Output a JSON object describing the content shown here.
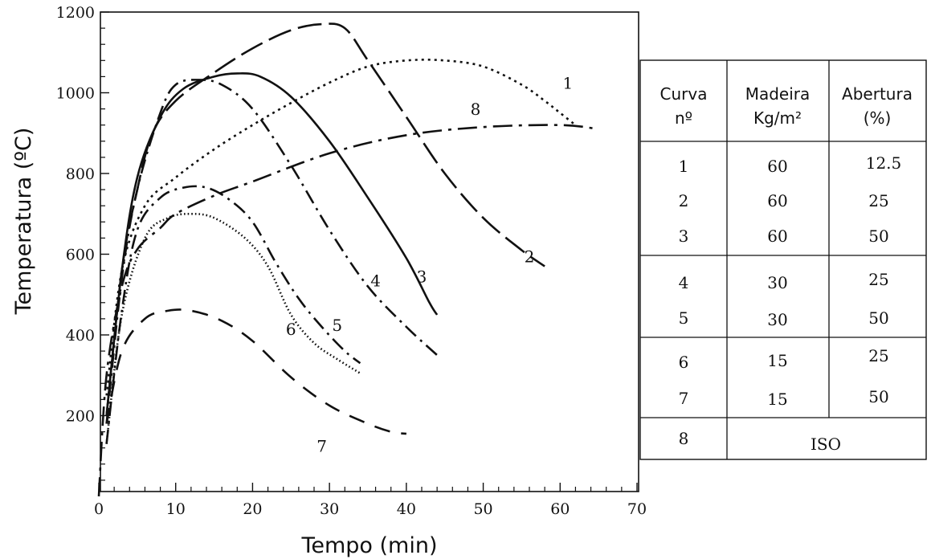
{
  "chart_data": {
    "type": "line",
    "xlabel": "Tempo (min)",
    "ylabel": "Temperatura (ºC)",
    "xlim": [
      0,
      70
    ],
    "ylim": [
      0,
      1200
    ],
    "x_ticks": [
      0,
      10,
      20,
      30,
      40,
      50,
      60,
      70
    ],
    "y_ticks": [
      200,
      400,
      600,
      800,
      1000,
      1200
    ],
    "grid": false,
    "series": [
      {
        "name": "1",
        "style": "dotted",
        "points": [
          [
            1,
            250
          ],
          [
            3,
            560
          ],
          [
            6,
            720
          ],
          [
            10,
            790
          ],
          [
            15,
            860
          ],
          [
            20,
            920
          ],
          [
            25,
            975
          ],
          [
            30,
            1025
          ],
          [
            35,
            1065
          ],
          [
            40,
            1080
          ],
          [
            45,
            1080
          ],
          [
            50,
            1065
          ],
          [
            55,
            1020
          ],
          [
            58,
            980
          ],
          [
            60,
            950
          ],
          [
            62,
            920
          ]
        ]
      },
      {
        "name": "2",
        "style": "long-dash",
        "points": [
          [
            1,
            200
          ],
          [
            3,
            560
          ],
          [
            5,
            760
          ],
          [
            7,
            900
          ],
          [
            10,
            980
          ],
          [
            15,
            1050
          ],
          [
            20,
            1110
          ],
          [
            25,
            1155
          ],
          [
            29,
            1170
          ],
          [
            32,
            1160
          ],
          [
            35,
            1080
          ],
          [
            40,
            940
          ],
          [
            45,
            800
          ],
          [
            50,
            690
          ],
          [
            55,
            610
          ],
          [
            58,
            570
          ]
        ]
      },
      {
        "name": "3",
        "style": "solid",
        "points": [
          [
            1,
            200
          ],
          [
            3,
            560
          ],
          [
            5,
            790
          ],
          [
            8,
            940
          ],
          [
            11,
            1010
          ],
          [
            15,
            1040
          ],
          [
            18,
            1048
          ],
          [
            21,
            1040
          ],
          [
            25,
            990
          ],
          [
            30,
            880
          ],
          [
            35,
            740
          ],
          [
            40,
            590
          ],
          [
            43,
            480
          ],
          [
            44,
            450
          ]
        ]
      },
      {
        "name": "4",
        "style": "dash-dot",
        "points": [
          [
            1,
            180
          ],
          [
            3,
            540
          ],
          [
            5,
            760
          ],
          [
            8,
            950
          ],
          [
            10,
            1020
          ],
          [
            13,
            1032
          ],
          [
            16,
            1020
          ],
          [
            20,
            960
          ],
          [
            25,
            820
          ],
          [
            30,
            660
          ],
          [
            35,
            520
          ],
          [
            40,
            420
          ],
          [
            44,
            350
          ]
        ]
      },
      {
        "name": "5",
        "style": "dash-dot",
        "points": [
          [
            1,
            130
          ],
          [
            3,
            460
          ],
          [
            5,
            660
          ],
          [
            8,
            740
          ],
          [
            11,
            765
          ],
          [
            14,
            765
          ],
          [
            17,
            735
          ],
          [
            20,
            680
          ],
          [
            23,
            580
          ],
          [
            26,
            490
          ],
          [
            29,
            420
          ],
          [
            32,
            360
          ],
          [
            34,
            330
          ]
        ]
      },
      {
        "name": "6",
        "style": "fine-dotted",
        "points": [
          [
            1,
            130
          ],
          [
            3,
            450
          ],
          [
            6,
            640
          ],
          [
            9,
            690
          ],
          [
            12,
            700
          ],
          [
            15,
            690
          ],
          [
            19,
            640
          ],
          [
            22,
            570
          ],
          [
            25,
            450
          ],
          [
            28,
            380
          ],
          [
            31,
            340
          ],
          [
            34,
            305
          ]
        ]
      },
      {
        "name": "7",
        "style": "dashed",
        "points": [
          [
            1,
            180
          ],
          [
            3,
            360
          ],
          [
            6,
            440
          ],
          [
            9,
            460
          ],
          [
            12,
            460
          ],
          [
            16,
            435
          ],
          [
            20,
            385
          ],
          [
            25,
            295
          ],
          [
            30,
            225
          ],
          [
            35,
            180
          ],
          [
            38,
            160
          ],
          [
            40,
            155
          ]
        ]
      },
      {
        "name": "8",
        "style": "dash-dot-long",
        "points": [
          [
            0,
            0
          ],
          [
            1,
            300
          ],
          [
            3,
            520
          ],
          [
            5,
            612
          ],
          [
            8,
            665
          ],
          [
            10,
            700
          ],
          [
            15,
            745
          ],
          [
            20,
            780
          ],
          [
            30,
            850
          ],
          [
            40,
            895
          ],
          [
            50,
            915
          ],
          [
            60,
            920
          ],
          [
            65,
            910
          ]
        ]
      }
    ],
    "curve_labels": [
      {
        "text": "1",
        "x": 61,
        "y": 1010
      },
      {
        "text": "8",
        "x": 49,
        "y": 945
      },
      {
        "text": "2",
        "x": 56,
        "y": 580
      },
      {
        "text": "3",
        "x": 42,
        "y": 530
      },
      {
        "text": "4",
        "x": 36,
        "y": 520
      },
      {
        "text": "5",
        "x": 31,
        "y": 410
      },
      {
        "text": "6",
        "x": 25,
        "y": 400
      },
      {
        "text": "7",
        "x": 29,
        "y": 110
      }
    ]
  },
  "legend_table": {
    "headers": {
      "col1": [
        "Curva",
        "nº"
      ],
      "col2": [
        "Madeira",
        "Kg/m²"
      ],
      "col3": [
        "Abertura",
        "(%)"
      ]
    },
    "groups": [
      [
        [
          "1",
          "60",
          "12.5"
        ],
        [
          "2",
          "60",
          "25"
        ],
        [
          "3",
          "60",
          "50"
        ]
      ],
      [
        [
          "4",
          "30",
          "25"
        ],
        [
          "5",
          "30",
          "50"
        ]
      ],
      [
        [
          "6",
          "15",
          "25"
        ],
        [
          "7",
          "15",
          "50"
        ]
      ]
    ],
    "last_row": {
      "curve": "8",
      "label": "ISO"
    }
  }
}
